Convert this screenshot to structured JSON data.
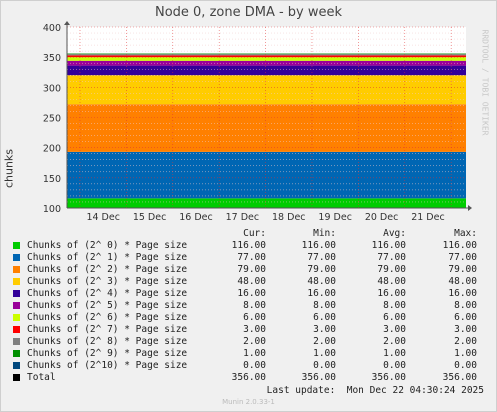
{
  "title": "Node 0, zone DMA - by week",
  "ylabel": "chunks",
  "watermark": "RRDTOOL / TOBI OETIKER",
  "version": "Munin 2.0.33-1",
  "last_update": "Last update:  Mon Dec 22 04:30:24 2025",
  "legend_headers": [
    "Cur:",
    "Min:",
    "Avg:",
    "Max:"
  ],
  "total_color": "#000000",
  "chart_data": {
    "type": "area",
    "stacked": true,
    "title": "Node 0, zone DMA - by week",
    "ylabel": "chunks",
    "xlabel": "",
    "ylim": [
      100,
      400
    ],
    "yticks": [
      100,
      150,
      200,
      250,
      300,
      350,
      400
    ],
    "x_ticks": [
      "14 Dec",
      "15 Dec",
      "16 Dec",
      "17 Dec",
      "18 Dec",
      "19 Dec",
      "20 Dec",
      "21 Dec"
    ],
    "grid": true,
    "series": [
      {
        "name": "Chunks of (2^ 0) * Page size",
        "color": "#00cc00",
        "cur": "116.00",
        "min": "116.00",
        "avg": "116.00",
        "max": "116.00",
        "value": 116
      },
      {
        "name": "Chunks of (2^ 1) * Page size",
        "color": "#0066b3",
        "cur": "77.00",
        "min": "77.00",
        "avg": "77.00",
        "max": "77.00",
        "value": 77
      },
      {
        "name": "Chunks of (2^ 2) * Page size",
        "color": "#ff8000",
        "cur": "79.00",
        "min": "79.00",
        "avg": "79.00",
        "max": "79.00",
        "value": 79
      },
      {
        "name": "Chunks of (2^ 3) * Page size",
        "color": "#ffcc00",
        "cur": "48.00",
        "min": "48.00",
        "avg": "48.00",
        "max": "48.00",
        "value": 48
      },
      {
        "name": "Chunks of (2^ 4) * Page size",
        "color": "#330099",
        "cur": "16.00",
        "min": "16.00",
        "avg": "16.00",
        "max": "16.00",
        "value": 16
      },
      {
        "name": "Chunks of (2^ 5) * Page size",
        "color": "#990099",
        "cur": "8.00",
        "min": "8.00",
        "avg": "8.00",
        "max": "8.00",
        "value": 8
      },
      {
        "name": "Chunks of (2^ 6) * Page size",
        "color": "#ccff00",
        "cur": "6.00",
        "min": "6.00",
        "avg": "6.00",
        "max": "6.00",
        "value": 6
      },
      {
        "name": "Chunks of (2^ 7) * Page size",
        "color": "#ff0000",
        "cur": "3.00",
        "min": "3.00",
        "avg": "3.00",
        "max": "3.00",
        "value": 3
      },
      {
        "name": "Chunks of (2^ 8) * Page size",
        "color": "#808080",
        "cur": "2.00",
        "min": "2.00",
        "avg": "2.00",
        "max": "2.00",
        "value": 2
      },
      {
        "name": "Chunks of (2^ 9) * Page size",
        "color": "#008f00",
        "cur": "1.00",
        "min": "1.00",
        "avg": "1.00",
        "max": "1.00",
        "value": 1
      },
      {
        "name": "Chunks of (2^10) * Page size",
        "color": "#00487d",
        "cur": "0.00",
        "min": "0.00",
        "avg": "0.00",
        "max": "0.00",
        "value": 0
      }
    ],
    "total": {
      "name": "Total",
      "cur": "356.00",
      "min": "356.00",
      "avg": "356.00",
      "max": "356.00"
    }
  }
}
